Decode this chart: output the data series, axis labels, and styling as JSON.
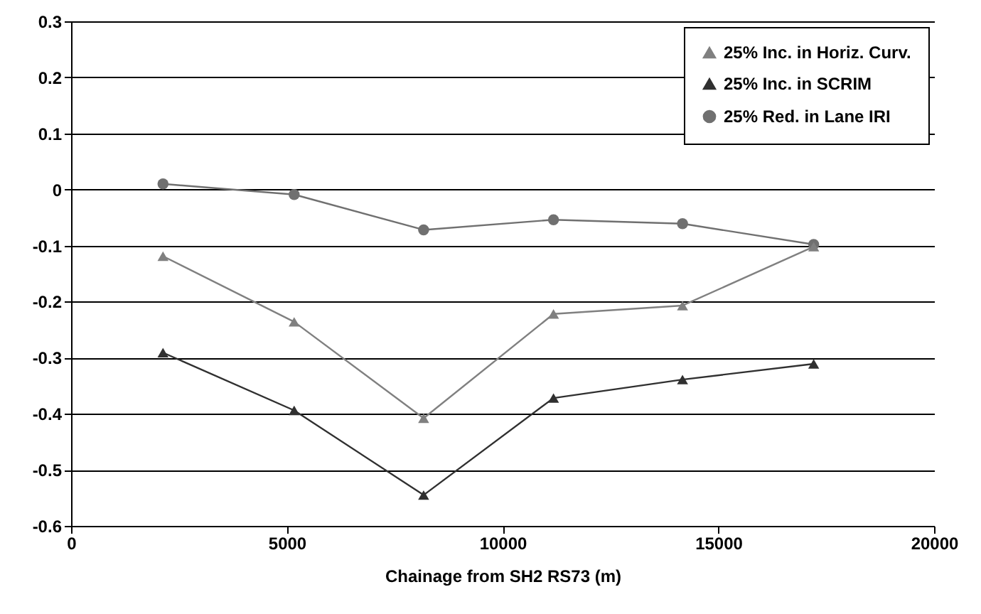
{
  "chart_data": {
    "type": "line",
    "xlabel": "Chainage from SH2 RS73 (m)",
    "x": [
      2130,
      5170,
      8170,
      11180,
      14170,
      17210
    ],
    "series": [
      {
        "name": "25% Inc. in Horiz. Curv.",
        "color": "#808080",
        "marker": "triangle",
        "values": [
          -0.119,
          -0.236,
          -0.408,
          -0.222,
          -0.207,
          -0.102
        ]
      },
      {
        "name": "25% Inc. in SCRIM",
        "color": "#303030",
        "marker": "triangle",
        "values": [
          -0.291,
          -0.394,
          -0.545,
          -0.372,
          -0.339,
          -0.311
        ]
      },
      {
        "name": "25% Red. in Lane IRI",
        "color": "#707070",
        "marker": "circle",
        "values": [
          0.01,
          -0.009,
          -0.072,
          -0.054,
          -0.061,
          -0.098
        ]
      }
    ],
    "xlim": [
      0,
      20000
    ],
    "xticks": [
      0,
      5000,
      10000,
      15000,
      20000
    ],
    "ylim": [
      -0.6,
      0.3
    ],
    "yticks": [
      -0.6,
      -0.5,
      -0.4,
      -0.3,
      -0.2,
      -0.1,
      0,
      0.1,
      0.2,
      0.3
    ],
    "grid": "y",
    "legend": "top right"
  }
}
